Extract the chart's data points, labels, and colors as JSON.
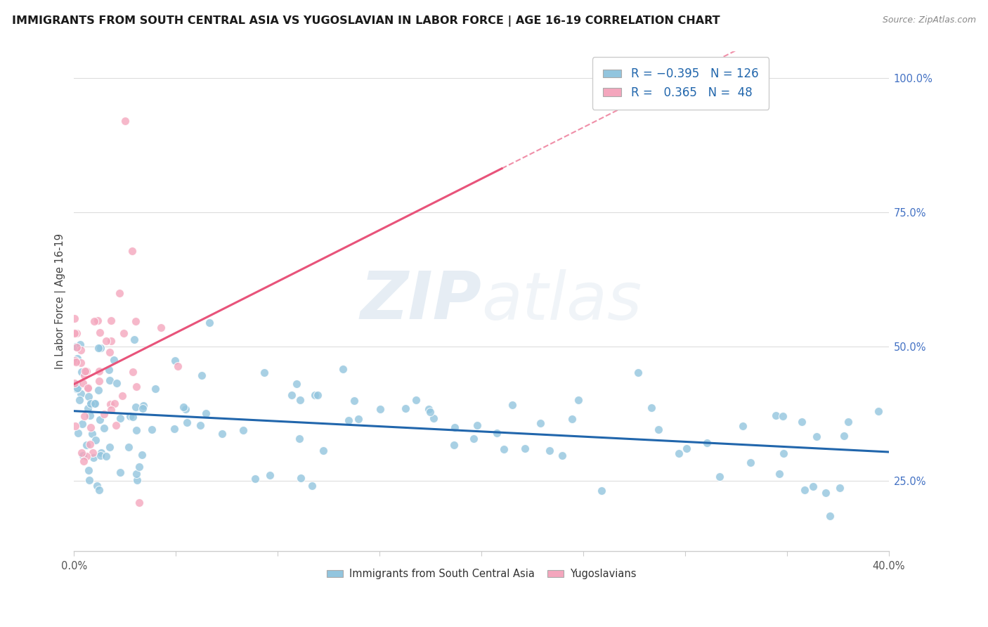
{
  "title": "IMMIGRANTS FROM SOUTH CENTRAL ASIA VS YUGOSLAVIAN IN LABOR FORCE | AGE 16-19 CORRELATION CHART",
  "source": "Source: ZipAtlas.com",
  "ylabel": "In Labor Force | Age 16-19",
  "x_min": 0.0,
  "x_max": 0.4,
  "y_min": 0.12,
  "y_max": 1.05,
  "blue_color": "#92c5de",
  "pink_color": "#f4a6bd",
  "blue_line_color": "#2166ac",
  "pink_line_color": "#e8537a",
  "blue_R": -0.395,
  "blue_N": 126,
  "pink_R": 0.365,
  "pink_N": 48,
  "watermark_zip": "ZIP",
  "watermark_atlas": "atlas",
  "legend_label_blue": "Immigrants from South Central Asia",
  "legend_label_pink": "Yugoslavians",
  "grid_color": "#dddddd",
  "axis_color": "#cccccc",
  "right_tick_color": "#4472c4",
  "title_color": "#1a1a1a",
  "source_color": "#888888",
  "ylabel_color": "#444444"
}
